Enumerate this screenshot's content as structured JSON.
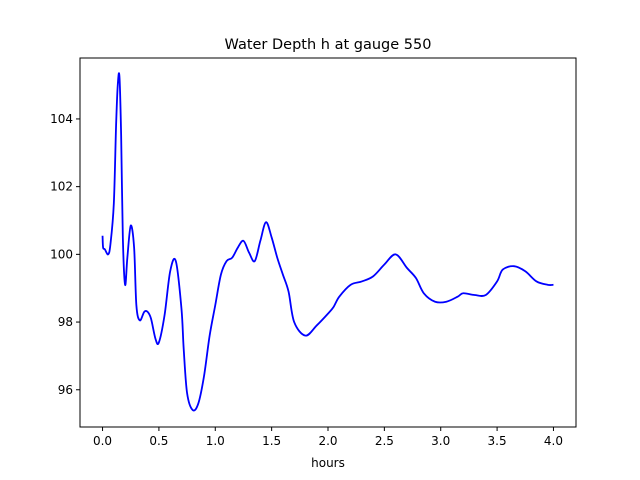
{
  "chart_data": {
    "type": "line",
    "title": "Water Depth h at gauge 550",
    "xlabel": "hours",
    "ylabel": "",
    "xlim": [
      -0.2,
      4.2
    ],
    "ylim": [
      94.9,
      105.8
    ],
    "xticks": [
      0.0,
      0.5,
      1.0,
      1.5,
      2.0,
      2.5,
      3.0,
      3.5,
      4.0
    ],
    "xtick_labels": [
      "0.0",
      "0.5",
      "1.0",
      "1.5",
      "2.0",
      "2.5",
      "3.0",
      "3.5",
      "4.0"
    ],
    "yticks": [
      96,
      98,
      100,
      102,
      104
    ],
    "ytick_labels": [
      "96",
      "98",
      "100",
      "102",
      "104"
    ],
    "grid": false,
    "series": [
      {
        "color": "#0000ff",
        "x": [
          0.0,
          0.005,
          0.02,
          0.05,
          0.07,
          0.1,
          0.12,
          0.135,
          0.15,
          0.165,
          0.18,
          0.2,
          0.22,
          0.25,
          0.28,
          0.3,
          0.33,
          0.37,
          0.4,
          0.43,
          0.47,
          0.5,
          0.55,
          0.6,
          0.65,
          0.7,
          0.72,
          0.75,
          0.8,
          0.85,
          0.9,
          0.95,
          1.0,
          1.05,
          1.1,
          1.15,
          1.2,
          1.25,
          1.3,
          1.35,
          1.4,
          1.45,
          1.5,
          1.55,
          1.6,
          1.65,
          1.7,
          1.8,
          1.9,
          2.0,
          2.05,
          2.1,
          2.2,
          2.3,
          2.4,
          2.5,
          2.6,
          2.7,
          2.78,
          2.85,
          2.95,
          3.05,
          3.15,
          3.2,
          3.3,
          3.4,
          3.5,
          3.55,
          3.65,
          3.75,
          3.85,
          3.95,
          4.0
        ],
        "y": [
          100.55,
          100.2,
          100.15,
          100.0,
          100.3,
          101.5,
          103.8,
          105.0,
          105.25,
          103.5,
          100.5,
          99.1,
          99.9,
          100.85,
          100.2,
          98.5,
          98.05,
          98.3,
          98.3,
          98.1,
          97.5,
          97.4,
          98.2,
          99.5,
          99.8,
          98.4,
          97.2,
          95.9,
          95.4,
          95.6,
          96.4,
          97.6,
          98.5,
          99.4,
          99.8,
          99.9,
          100.2,
          100.4,
          100.05,
          99.8,
          100.4,
          100.95,
          100.5,
          99.9,
          99.4,
          98.9,
          98.0,
          97.6,
          97.9,
          98.25,
          98.45,
          98.75,
          99.1,
          99.2,
          99.35,
          99.7,
          100.0,
          99.6,
          99.3,
          98.85,
          98.6,
          98.6,
          98.75,
          98.85,
          98.8,
          98.8,
          99.2,
          99.55,
          99.65,
          99.5,
          99.2,
          99.1,
          99.1
        ]
      }
    ]
  }
}
